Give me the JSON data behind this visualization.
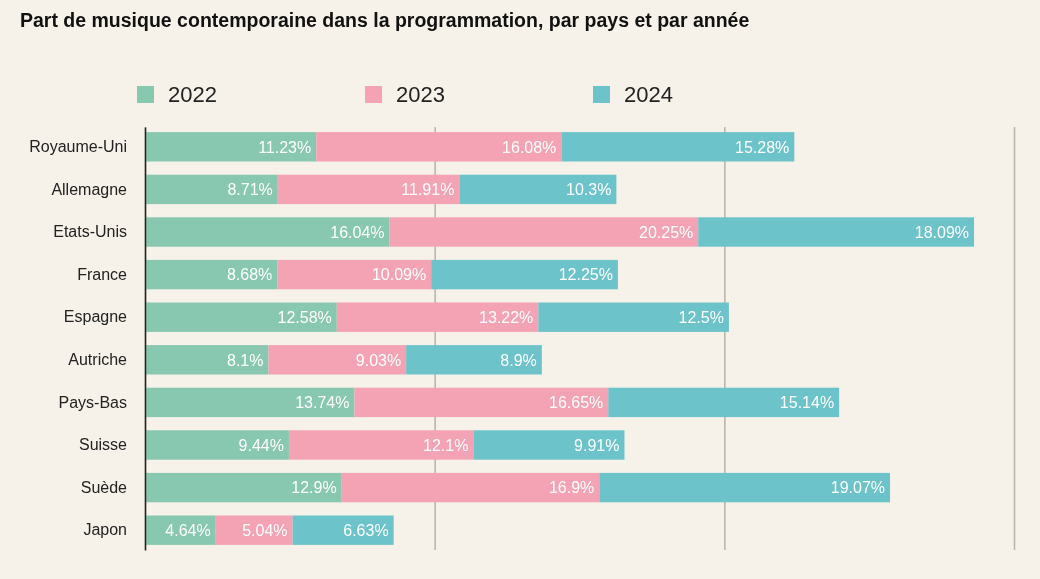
{
  "chart_data": {
    "type": "bar",
    "orientation": "horizontal",
    "stacked": true,
    "title": "Part de musique contemporaine dans la programmation, par pays et par année",
    "categories": [
      "Royaume-Uni",
      "Allemagne",
      "Etats-Unis",
      "France",
      "Espagne",
      "Autriche",
      "Pays-Bas",
      "Suisse",
      "Suède",
      "Japon"
    ],
    "series": [
      {
        "name": "2022",
        "color": "#88c7b0",
        "values": [
          11.23,
          8.71,
          16.04,
          8.68,
          12.58,
          8.1,
          13.74,
          9.44,
          12.9,
          4.64
        ],
        "value_labels": [
          "11.23%",
          "8.71%",
          "16.04%",
          "8.68%",
          "12.58%",
          "8.1%",
          "13.74%",
          "9.44%",
          "12.9%",
          "4.64%"
        ]
      },
      {
        "name": "2023",
        "color": "#f4a3b4",
        "values": [
          16.08,
          11.91,
          20.25,
          10.09,
          13.22,
          9.03,
          16.65,
          12.1,
          16.9,
          5.04
        ],
        "value_labels": [
          "16.08%",
          "11.91%",
          "20.25%",
          "10.09%",
          "13.22%",
          "9.03%",
          "16.65%",
          "12.1%",
          "16.9%",
          "5.04%"
        ]
      },
      {
        "name": "2024",
        "color": "#6cc3ca",
        "values": [
          15.28,
          10.3,
          18.09,
          12.25,
          12.5,
          8.9,
          15.14,
          9.91,
          19.07,
          6.63
        ],
        "value_labels": [
          "15.28%",
          "10.3%",
          "18.09%",
          "12.25%",
          "12.5%",
          "8.9%",
          "15.14%",
          "9.91%",
          "19.07%",
          "6.63%"
        ]
      }
    ],
    "xlim": [
      0,
      57
    ],
    "xticks": [
      {
        "value": 0,
        "label": null
      },
      {
        "value": 19,
        "label": null
      },
      {
        "value": 38,
        "label": null
      },
      {
        "value": 57,
        "label": null
      }
    ],
    "grid": "x",
    "legend": "top",
    "tick_labels": "y"
  }
}
